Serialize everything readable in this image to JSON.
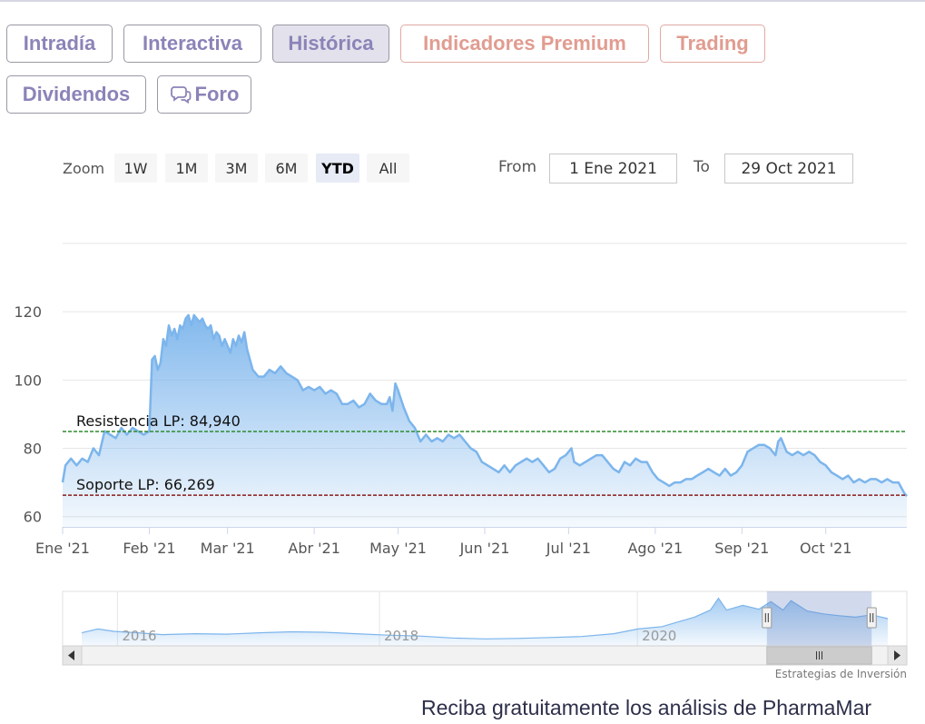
{
  "tabs": [
    {
      "label": "Intradía",
      "active": false,
      "premium": false
    },
    {
      "label": "Interactiva",
      "active": false,
      "premium": false
    },
    {
      "label": "Histórica",
      "active": true,
      "premium": false
    },
    {
      "label": "Indicadores Premium",
      "active": false,
      "premium": true
    },
    {
      "label": "Trading",
      "active": false,
      "premium": true
    },
    {
      "label": "Dividendos",
      "active": false,
      "premium": false
    },
    {
      "label": "Foro",
      "active": false,
      "premium": false,
      "icon": "chat-bubbles-icon"
    }
  ],
  "zoom": {
    "label": "Zoom",
    "buttons": [
      "1W",
      "1M",
      "3M",
      "6M",
      "YTD",
      "All"
    ],
    "selected": "YTD"
  },
  "range": {
    "from_label": "From",
    "from_value": "1 Ene 2021",
    "to_label": "To",
    "to_value": "29 Oct 2021"
  },
  "chart_data": {
    "type": "area",
    "x_unit": "day of 2021",
    "y_ticks": [
      60,
      80,
      100,
      120
    ],
    "ylim": [
      57,
      140
    ],
    "xlim": [
      0,
      302
    ],
    "x_ticks": [
      {
        "label": "Ene '21",
        "x": 0
      },
      {
        "label": "Feb '21",
        "x": 31
      },
      {
        "label": "Mar '21",
        "x": 59
      },
      {
        "label": "Abr '21",
        "x": 90
      },
      {
        "label": "May '21",
        "x": 120
      },
      {
        "label": "Jun '21",
        "x": 151
      },
      {
        "label": "Jul '21",
        "x": 181
      },
      {
        "label": "Ago '21",
        "x": 212
      },
      {
        "label": "Sep '21",
        "x": 243
      },
      {
        "label": "Oct '21",
        "x": 273
      }
    ],
    "series": [
      {
        "color": "#7cb5ec",
        "points": [
          [
            0,
            70
          ],
          [
            1,
            75
          ],
          [
            3,
            77
          ],
          [
            5,
            75
          ],
          [
            7,
            77
          ],
          [
            9,
            76
          ],
          [
            11,
            80
          ],
          [
            13,
            78
          ],
          [
            15,
            85
          ],
          [
            17,
            84
          ],
          [
            19,
            83
          ],
          [
            21,
            86
          ],
          [
            23,
            84
          ],
          [
            25,
            86
          ],
          [
            27,
            85
          ],
          [
            29,
            84
          ],
          [
            31,
            85
          ],
          [
            32,
            106
          ],
          [
            33,
            107
          ],
          [
            34,
            103
          ],
          [
            35,
            105
          ],
          [
            36,
            112
          ],
          [
            37,
            110
          ],
          [
            38,
            116
          ],
          [
            39,
            113
          ],
          [
            40,
            115
          ],
          [
            41,
            112
          ],
          [
            42,
            116
          ],
          [
            43,
            115
          ],
          [
            44,
            118
          ],
          [
            45,
            119
          ],
          [
            46,
            116
          ],
          [
            47,
            119
          ],
          [
            48,
            118
          ],
          [
            49,
            117
          ],
          [
            50,
            118
          ],
          [
            51,
            116
          ],
          [
            52,
            115
          ],
          [
            53,
            116
          ],
          [
            54,
            112
          ],
          [
            55,
            114
          ],
          [
            56,
            113
          ],
          [
            57,
            110
          ],
          [
            58,
            112
          ],
          [
            59,
            110
          ],
          [
            60,
            108
          ],
          [
            61,
            112
          ],
          [
            62,
            110
          ],
          [
            63,
            113
          ],
          [
            64,
            111
          ],
          [
            65,
            114
          ],
          [
            66,
            109
          ],
          [
            67,
            106
          ],
          [
            68,
            103
          ],
          [
            69,
            102
          ],
          [
            70,
            101
          ],
          [
            72,
            101
          ],
          [
            74,
            103
          ],
          [
            76,
            102
          ],
          [
            78,
            104
          ],
          [
            80,
            102
          ],
          [
            82,
            101
          ],
          [
            84,
            100
          ],
          [
            86,
            97
          ],
          [
            88,
            98
          ],
          [
            90,
            97
          ],
          [
            92,
            98
          ],
          [
            94,
            96
          ],
          [
            96,
            97
          ],
          [
            98,
            96
          ],
          [
            100,
            93
          ],
          [
            102,
            93
          ],
          [
            104,
            94
          ],
          [
            106,
            92
          ],
          [
            108,
            93
          ],
          [
            110,
            96
          ],
          [
            112,
            94
          ],
          [
            114,
            93
          ],
          [
            116,
            93
          ],
          [
            117,
            95
          ],
          [
            118,
            91
          ],
          [
            119,
            99
          ],
          [
            120,
            97
          ],
          [
            122,
            92
          ],
          [
            124,
            88
          ],
          [
            126,
            86
          ],
          [
            128,
            82
          ],
          [
            130,
            84
          ],
          [
            132,
            82
          ],
          [
            134,
            83
          ],
          [
            136,
            82
          ],
          [
            138,
            84
          ],
          [
            140,
            83
          ],
          [
            142,
            84
          ],
          [
            144,
            82
          ],
          [
            146,
            80
          ],
          [
            148,
            79
          ],
          [
            150,
            76
          ],
          [
            152,
            75
          ],
          [
            154,
            74
          ],
          [
            156,
            73
          ],
          [
            158,
            75
          ],
          [
            160,
            73
          ],
          [
            162,
            75
          ],
          [
            164,
            76
          ],
          [
            166,
            77
          ],
          [
            168,
            76
          ],
          [
            170,
            77
          ],
          [
            172,
            75
          ],
          [
            174,
            73
          ],
          [
            176,
            74
          ],
          [
            178,
            77
          ],
          [
            180,
            78
          ],
          [
            182,
            80
          ],
          [
            183,
            76
          ],
          [
            185,
            75
          ],
          [
            187,
            76
          ],
          [
            189,
            77
          ],
          [
            191,
            78
          ],
          [
            193,
            78
          ],
          [
            195,
            76
          ],
          [
            197,
            74
          ],
          [
            199,
            73
          ],
          [
            201,
            76
          ],
          [
            203,
            75
          ],
          [
            205,
            77
          ],
          [
            207,
            76
          ],
          [
            209,
            76
          ],
          [
            211,
            73
          ],
          [
            213,
            71
          ],
          [
            215,
            70
          ],
          [
            217,
            69
          ],
          [
            219,
            70
          ],
          [
            221,
            70
          ],
          [
            223,
            71
          ],
          [
            225,
            71
          ],
          [
            227,
            72
          ],
          [
            229,
            73
          ],
          [
            231,
            74
          ],
          [
            233,
            73
          ],
          [
            235,
            72
          ],
          [
            237,
            74
          ],
          [
            239,
            72
          ],
          [
            241,
            73
          ],
          [
            243,
            75
          ],
          [
            245,
            79
          ],
          [
            247,
            80
          ],
          [
            249,
            81
          ],
          [
            251,
            81
          ],
          [
            253,
            80
          ],
          [
            255,
            78
          ],
          [
            256,
            82
          ],
          [
            257,
            83
          ],
          [
            258,
            81
          ],
          [
            259,
            79
          ],
          [
            261,
            78
          ],
          [
            263,
            79
          ],
          [
            265,
            78
          ],
          [
            267,
            79
          ],
          [
            269,
            78
          ],
          [
            271,
            76
          ],
          [
            273,
            75
          ],
          [
            275,
            73
          ],
          [
            277,
            72
          ],
          [
            279,
            71
          ],
          [
            281,
            72
          ],
          [
            283,
            70
          ],
          [
            285,
            71
          ],
          [
            287,
            70
          ],
          [
            289,
            71
          ],
          [
            291,
            71
          ],
          [
            293,
            70
          ],
          [
            295,
            71
          ],
          [
            297,
            70
          ],
          [
            299,
            70
          ],
          [
            301,
            67
          ],
          [
            302,
            66
          ]
        ]
      }
    ],
    "plot_lines": [
      {
        "label": "Resistencia LP: 84,940",
        "value": 84.94,
        "color": "#2e8b2e"
      },
      {
        "label": "Soporte LP: 66,269",
        "value": 66.269,
        "color": "#8b1a1a"
      }
    ],
    "navigator": {
      "year_labels": [
        {
          "label": "2016",
          "x": 0.05
        },
        {
          "label": "2018",
          "x": 0.375
        },
        {
          "label": "2020",
          "x": 0.695
        }
      ],
      "profile": [
        [
          0,
          0.22
        ],
        [
          0.02,
          0.3
        ],
        [
          0.04,
          0.25
        ],
        [
          0.07,
          0.22
        ],
        [
          0.1,
          0.18
        ],
        [
          0.14,
          0.2
        ],
        [
          0.18,
          0.19
        ],
        [
          0.22,
          0.22
        ],
        [
          0.26,
          0.24
        ],
        [
          0.3,
          0.23
        ],
        [
          0.34,
          0.2
        ],
        [
          0.38,
          0.17
        ],
        [
          0.42,
          0.15
        ],
        [
          0.46,
          0.11
        ],
        [
          0.5,
          0.09
        ],
        [
          0.54,
          0.1
        ],
        [
          0.58,
          0.12
        ],
        [
          0.62,
          0.14
        ],
        [
          0.66,
          0.2
        ],
        [
          0.69,
          0.3
        ],
        [
          0.72,
          0.35
        ],
        [
          0.74,
          0.45
        ],
        [
          0.76,
          0.55
        ],
        [
          0.78,
          0.7
        ],
        [
          0.79,
          0.95
        ],
        [
          0.8,
          0.7
        ],
        [
          0.82,
          0.8
        ],
        [
          0.84,
          0.72
        ],
        [
          0.855,
          0.88
        ],
        [
          0.87,
          0.7
        ],
        [
          0.88,
          0.9
        ],
        [
          0.9,
          0.68
        ],
        [
          0.92,
          0.62
        ],
        [
          0.94,
          0.58
        ],
        [
          0.96,
          0.55
        ],
        [
          0.98,
          0.6
        ],
        [
          1,
          0.52
        ]
      ],
      "selection": [
        0.85,
        0.98
      ]
    },
    "credits": "Estrategias de Inversión"
  },
  "footer": {
    "text": "Reciba gratuitamente los análisis de PharmaMar"
  }
}
